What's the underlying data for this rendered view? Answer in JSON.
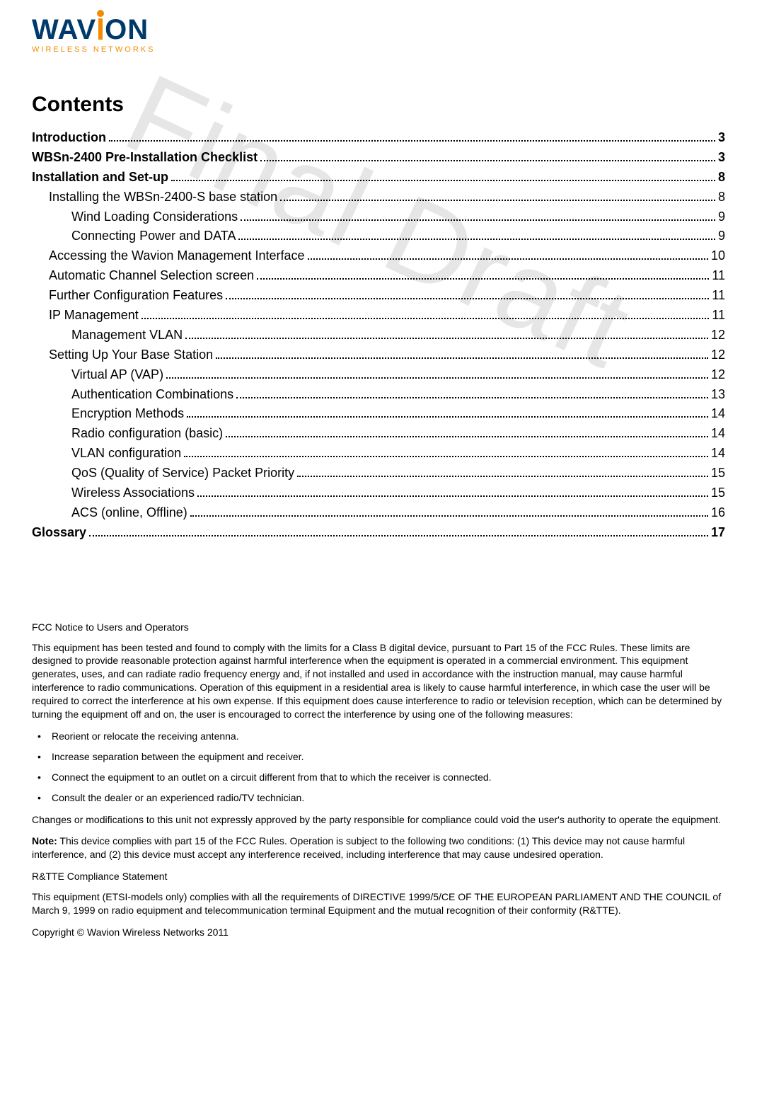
{
  "logo": {
    "main_left": "WAV",
    "main_right": "ON",
    "subtitle": "WIRELESS NETWORKS",
    "main_color": "#003a6b",
    "accent_color": "#f28b00"
  },
  "watermark": "Final Draft",
  "title": "Contents",
  "toc": [
    {
      "level": 1,
      "label": "Introduction",
      "page": "3"
    },
    {
      "level": 1,
      "label": "WBSn-2400 Pre-Installation Checklist",
      "page": "3"
    },
    {
      "level": 1,
      "label": "Installation and Set-up",
      "page": "8"
    },
    {
      "level": 2,
      "label": "Installing the WBSn-2400-S base station",
      "page": "8"
    },
    {
      "level": 3,
      "label": "Wind Loading Considerations",
      "page": "9"
    },
    {
      "level": 3,
      "label": "Connecting Power and DATA",
      "page": "9"
    },
    {
      "level": 2,
      "label": "Accessing the Wavion Management Interface",
      "page": "10"
    },
    {
      "level": 2,
      "label": "Automatic Channel Selection screen",
      "page": "11"
    },
    {
      "level": 2,
      "label": "Further Configuration Features",
      "page": "11"
    },
    {
      "level": 2,
      "label": "IP Management",
      "page": "11"
    },
    {
      "level": 3,
      "label": "Management VLAN",
      "page": "12"
    },
    {
      "level": 2,
      "label": "Setting Up Your Base Station",
      "page": "12"
    },
    {
      "level": 3,
      "label": "Virtual AP (VAP)",
      "page": "12"
    },
    {
      "level": 3,
      "label": "Authentication Combinations",
      "page": "13"
    },
    {
      "level": 3,
      "label": "Encryption Methods",
      "page": "14"
    },
    {
      "level": 3,
      "label": "Radio configuration (basic)",
      "page": "14"
    },
    {
      "level": 3,
      "label": "VLAN configuration",
      "page": "14"
    },
    {
      "level": 3,
      "label": "QoS (Quality of Service) Packet Priority",
      "page": "15"
    },
    {
      "level": 3,
      "label": "Wireless Associations",
      "page": "15"
    },
    {
      "level": 3,
      "label": "ACS (online, Offline)",
      "page": "16"
    },
    {
      "level": 1,
      "label": "Glossary",
      "page": "17"
    }
  ],
  "fcc": {
    "heading": "FCC Notice to Users and Operators",
    "para1": "This equipment has been tested and found to comply with the limits for a Class B digital device, pursuant to Part 15 of the FCC Rules. These limits are designed to provide reasonable protection against harmful interference when the equipment is operated in a commercial environment. This equipment generates, uses, and can radiate radio frequency energy and, if not installed and used in accordance with the instruction manual, may cause harmful interference to radio communications. Operation of this equipment in a residential area is likely to cause harmful interference, in which case the user will be required to correct the interference at his own expense. If this equipment does cause interference to radio or television reception, which can be determined by turning the equipment off and on, the user is encouraged to correct the interference by using one of the following measures:",
    "bullets": [
      "Reorient or relocate the receiving antenna.",
      "Increase separation between the equipment and receiver.",
      "Connect the equipment to an outlet on a circuit different from that to which the receiver is connected.",
      "Consult the dealer or an experienced radio/TV technician."
    ],
    "para2": "Changes or modifications to this unit not expressly approved by the party responsible for compliance could void the user's authority to operate the equipment.",
    "note_label": "Note:",
    "note_text": " This device complies with part 15 of the FCC Rules. Operation is subject to the following two conditions: (1) This device may not cause harmful interference, and (2) this device must accept any interference received, including interference that may cause undesired operation.",
    "rtte_heading": "R&TTE Compliance Statement",
    "rtte_body": "This equipment (ETSI-models only) complies with all the requirements of DIRECTIVE 1999/5/CE OF THE EUROPEAN PARLIAMENT AND THE COUNCIL of March 9, 1999 on radio equipment and telecommunication terminal Equipment and the mutual recognition of their conformity (R&TTE)."
  },
  "copyright": "Copyright © Wavion Wireless Networks 2011"
}
